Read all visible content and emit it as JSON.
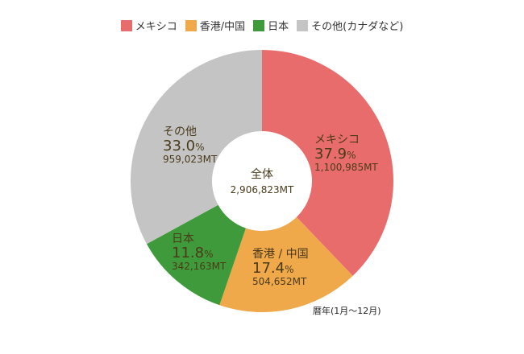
{
  "chart_data": {
    "type": "pie",
    "variant": "donut",
    "center_label": {
      "title": "全体",
      "total": "2,906,823MT"
    },
    "legend_position": "top",
    "slices": [
      {
        "legend": "メキシコ",
        "label": "メキシコ",
        "percent": 37.9,
        "percent_text": "37.9",
        "value": 1100985,
        "value_text": "1,100,985MT",
        "color": "#e96c6c"
      },
      {
        "legend": "香港/中国",
        "label": "香港 / 中国",
        "percent": 17.4,
        "percent_text": "17.4",
        "value": 504652,
        "value_text": "504,652MT",
        "color": "#f0a94a"
      },
      {
        "legend": "日本",
        "label": "日本",
        "percent": 11.8,
        "percent_text": "11.8",
        "value": 342163,
        "value_text": "342,163MT",
        "color": "#3e9a3a"
      },
      {
        "legend": "その他(カナダなど)",
        "label": "その他",
        "percent": 33.0,
        "percent_text": "33.0",
        "value": 959023,
        "value_text": "959,023MT",
        "color": "#c4c4c4"
      }
    ],
    "percent_unit": "%",
    "note": "暦年(1月〜12月)"
  }
}
